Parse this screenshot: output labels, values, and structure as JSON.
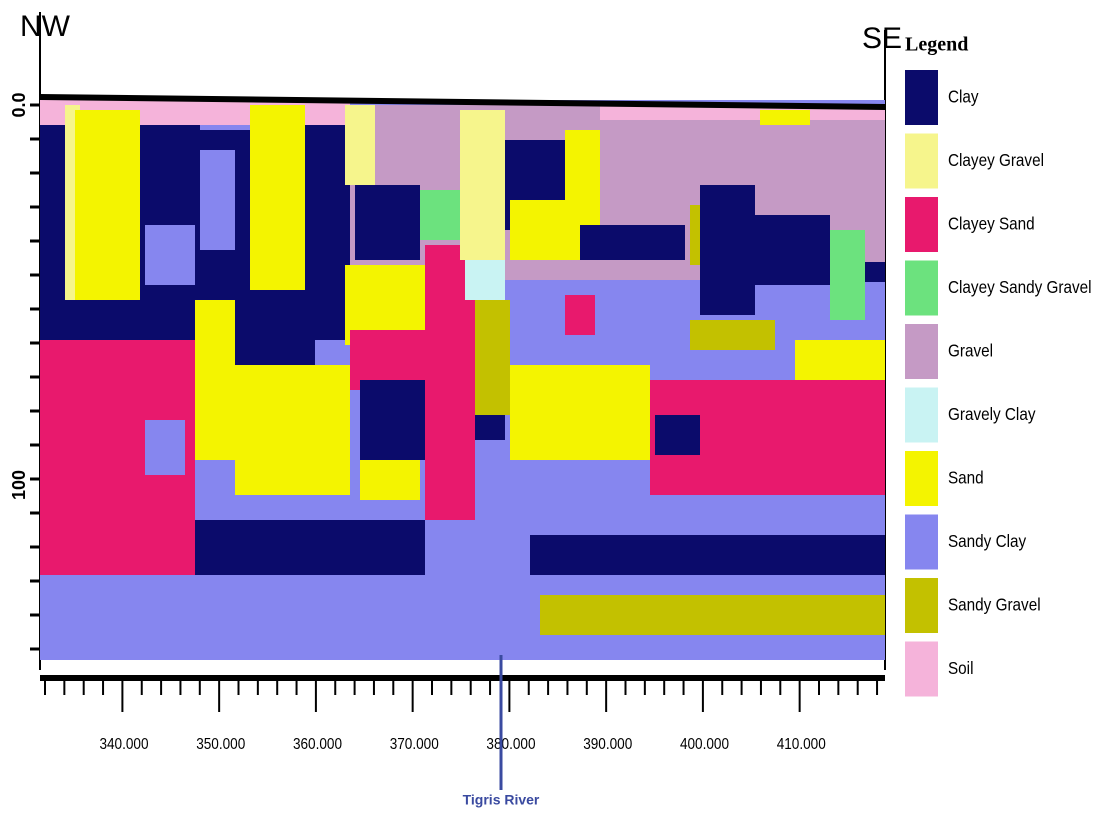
{
  "header": {
    "left_label": "NW",
    "right_label": "SE"
  },
  "depth_labels": [
    "0.0",
    "100"
  ],
  "x_labels": [
    "340.000",
    "350.000",
    "360.000",
    "370.000",
    "380.000",
    "390.000",
    "400.000",
    "410.000"
  ],
  "river_label": "Tigris River",
  "legend": {
    "title": "Legend",
    "items": [
      {
        "label": "Clay",
        "color": "#0b0b6b"
      },
      {
        "label": "Clayey Gravel",
        "color": "#f6f58c"
      },
      {
        "label": "Clayey Sand",
        "color": "#e8196d"
      },
      {
        "label": "Clayey Sandy Gravel",
        "color": "#6ce27e"
      },
      {
        "label": "Gravel",
        "color": "#c59ac5"
      },
      {
        "label": "Gravely Clay",
        "color": "#c9f3f3"
      },
      {
        "label": "Sand",
        "color": "#f4f400"
      },
      {
        "label": "Sandy Clay",
        "color": "#8686ef"
      },
      {
        "label": "Sandy Gravel",
        "color": "#c3c100"
      },
      {
        "label": "Soil",
        "color": "#f5b3da"
      }
    ]
  }
}
